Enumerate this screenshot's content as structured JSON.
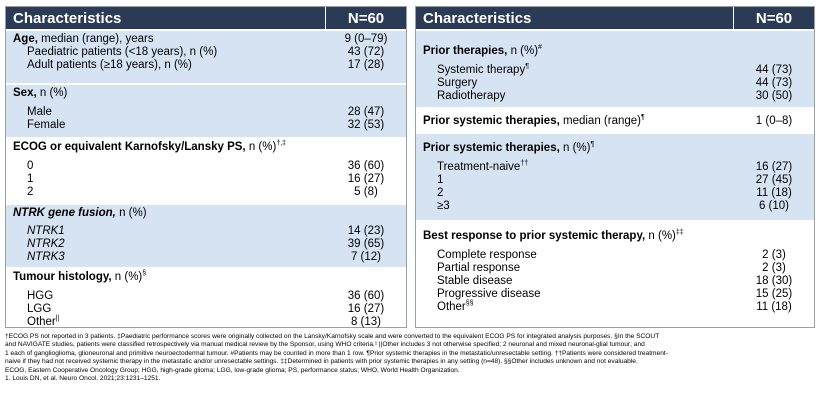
{
  "left": {
    "header": {
      "characteristics": "Characteristics",
      "n": "N=60"
    },
    "sections": [
      {
        "title_bold": "Age,",
        "title_rest": " median (range), years",
        "title_value": "9 (0–79)",
        "rows": [
          {
            "label": "Paediatric patients (<18 years), n (%)",
            "value": "43 (72)"
          },
          {
            "label": "Adult patients (≥18 years), n (%)",
            "value": "17 (28)"
          }
        ]
      },
      {
        "title_bold": "Sex,",
        "title_rest": " n (%)",
        "title_value": "",
        "rows": [
          {
            "label": "Male",
            "value": "28 (47)"
          },
          {
            "label": "Female",
            "value": "32 (53)"
          }
        ]
      },
      {
        "title_bold": "ECOG or equivalent Karnofsky/Lansky PS,",
        "title_rest": " n (%)",
        "title_sup": "†,‡",
        "title_value": "",
        "rows": [
          {
            "label": "0",
            "value": "36 (60)"
          },
          {
            "label": "1",
            "value": "16 (27)"
          },
          {
            "label": "2",
            "value": "5 (8)"
          }
        ]
      },
      {
        "title_bold": "NTRK gene fusion,",
        "title_rest": " n (%)",
        "title_value": "",
        "rows": [
          {
            "label": "NTRK1",
            "value": "14 (23)"
          },
          {
            "label": "NTRK2",
            "value": "39 (65)"
          },
          {
            "label": "NTRK3",
            "value": "7 (12)"
          }
        ]
      },
      {
        "title_bold": "Tumour histology,",
        "title_rest": " n (%)",
        "title_sup": "§",
        "title_value": "",
        "rows": [
          {
            "label": "HGG",
            "value": "36 (60)"
          },
          {
            "label": "LGG",
            "value": "16 (27)"
          },
          {
            "label": "Other",
            "label_sup": "||",
            "value": "8 (13)"
          }
        ]
      }
    ]
  },
  "right": {
    "header": {
      "characteristics": "Characteristics",
      "n": "N=60"
    },
    "sections": [
      {
        "title_bold": "Prior therapies,",
        "title_rest": " n (%)",
        "title_sup": "#",
        "title_value": "",
        "rows": [
          {
            "label": "Systemic therapy",
            "label_sup": "¶",
            "value": "44 (73)"
          },
          {
            "label": "Surgery",
            "value": "44 (73)"
          },
          {
            "label": "Radiotherapy",
            "value": "30 (50)"
          }
        ]
      },
      {
        "title_bold": "Prior systemic therapies,",
        "title_rest": " median (range)",
        "title_sup": "¶",
        "title_value": "1 (0–8)",
        "rows": []
      },
      {
        "title_bold": "Prior systemic therapies,",
        "title_rest": " n (%)",
        "title_sup": "¶",
        "title_value": "",
        "rows": [
          {
            "label": "Treatment-naive",
            "label_sup": "††",
            "value": "16 (27)"
          },
          {
            "label": "1",
            "value": "27 (45)"
          },
          {
            "label": "2",
            "value": "11 (18)"
          },
          {
            "label": "≥3",
            "value": "6 (10)"
          }
        ]
      },
      {
        "title_bold": "Best response to prior systemic therapy,",
        "title_rest": " n (%)",
        "title_sup": "‡‡",
        "title_value": "",
        "rows": [
          {
            "label": "Complete response",
            "value": "2 (3)"
          },
          {
            "label": "Partial response",
            "value": "2 (3)"
          },
          {
            "label": "Stable disease",
            "value": "18 (30)"
          },
          {
            "label": "Progressive disease",
            "value": "15 (25)"
          },
          {
            "label": "Other",
            "label_sup": "§§",
            "value": "11 (18)"
          }
        ]
      }
    ]
  },
  "footnotes": [
    "†ECOG PS not reported in 3 patients. ‡Paediatric performance scores were originally collected on the Lansky/Karnofsky scale and were converted to the equivalent ECOG PS for integrated analysis purposes. §In the SCOUT",
    "and NAVIGATE studies, patients were classified retrospectively via manual medical review by the Sponsor, using WHO criteria.¹ ||Other includes 3 not otherwise specified; 2 neuronal and mixed neuronal-glial tumour; and",
    "1 each of ganglioglioma, glioneuronal and primitive neuroectodermal tumour. #Patients may be counted in more than 1 row. ¶Prior systemic therapies in the metastatic/unresectable setting. ††Patients were considered treatment-",
    "naive if they had not received systemic therapy in the metastatic and/or unresectable settings. ‡‡Determined in patients with prior systemic therapies in any setting (n=48). §§Other includes unknown and not evaluable.",
    "ECOG, Eastern Cooperative Oncology Group; HGG, high-grade glioma; LGG, low-grade glioma; PS, performance status; WHO, World Health Organization.",
    "1. Louis DN, et al. Neuro Oncol. 2021;23:1231–1251."
  ],
  "colors": {
    "header_bg": "#2b3a55",
    "shade": "#d6e3f3"
  }
}
